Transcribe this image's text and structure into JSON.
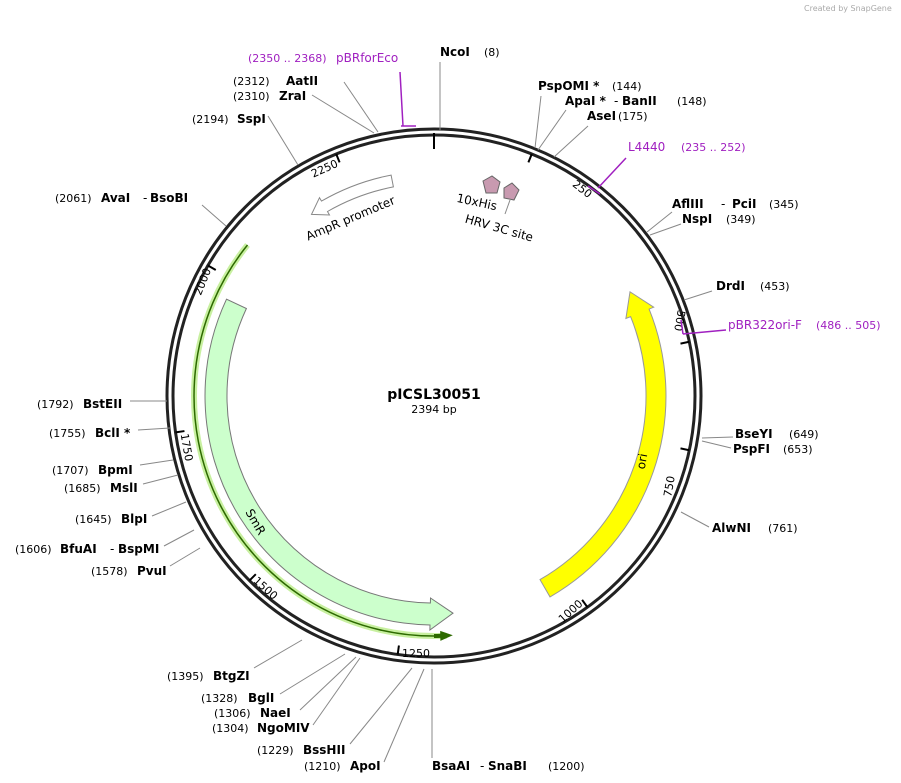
{
  "credit": "Created by SnapGene",
  "map": {
    "name": "pICSL30051",
    "length": "2394 bp"
  },
  "name_separator": "-",
  "sites": [
    {
      "names": [
        "NcoI"
      ],
      "position": "(8)"
    },
    {
      "names": [
        "PspOMI *"
      ],
      "position": "(144)"
    },
    {
      "names": [
        "ApaI *",
        "BanII"
      ],
      "position": "(148)"
    },
    {
      "names": [
        "AseI"
      ],
      "position": "(175)"
    },
    {
      "names": [
        "AflIII",
        "PciI"
      ],
      "position": "(345)"
    },
    {
      "names": [
        "NspI"
      ],
      "position": "(349)"
    },
    {
      "names": [
        "DrdI"
      ],
      "position": "(453)"
    },
    {
      "names": [
        "BseYI"
      ],
      "position": "(649)"
    },
    {
      "names": [
        "PspFI"
      ],
      "position": "(653)"
    },
    {
      "names": [
        "AlwNI"
      ],
      "position": "(761)"
    },
    {
      "names": [
        "BsaAI",
        "SnaBI"
      ],
      "position": "(1200)"
    },
    {
      "names": [
        "ApoI"
      ],
      "position": "(1210)"
    },
    {
      "names": [
        "BssHII"
      ],
      "position": "(1229)"
    },
    {
      "names": [
        "NgoMIV"
      ],
      "position": "(1304)"
    },
    {
      "names": [
        "NaeI"
      ],
      "position": "(1306)"
    },
    {
      "names": [
        "BglI"
      ],
      "position": "(1328)"
    },
    {
      "names": [
        "BtgZI"
      ],
      "position": "(1395)"
    },
    {
      "names": [
        "PvuI"
      ],
      "position": "(1578)"
    },
    {
      "names": [
        "BfuAI",
        "BspMI"
      ],
      "position": "(1606)"
    },
    {
      "names": [
        "BlpI"
      ],
      "position": "(1645)"
    },
    {
      "names": [
        "MslI"
      ],
      "position": "(1685)"
    },
    {
      "names": [
        "BpmI"
      ],
      "position": "(1707)"
    },
    {
      "names": [
        "BclI *"
      ],
      "position": "(1755)"
    },
    {
      "names": [
        "BstEII"
      ],
      "position": "(1792)"
    },
    {
      "names": [
        "AvaI",
        "BsoBI"
      ],
      "position": "(2061)"
    },
    {
      "names": [
        "SspI"
      ],
      "position": "(2194)"
    },
    {
      "names": [
        "ZraI"
      ],
      "position": "(2310)"
    },
    {
      "names": [
        "AatII"
      ],
      "position": "(2312)"
    }
  ],
  "features": [
    {
      "label": "AmpR promoter"
    },
    {
      "label": "10xHis"
    },
    {
      "label": "HRV 3C site"
    },
    {
      "label": "SmR"
    },
    {
      "label": "ori"
    }
  ],
  "primers": [
    {
      "name": "pBRforEco",
      "range": "(2350 .. 2368)"
    },
    {
      "name": "L4440",
      "range": "(235 .. 252)"
    },
    {
      "name": "pBR322ori-F",
      "range": "(486 .. 505)"
    }
  ],
  "ring_ticks": [
    250,
    500,
    750,
    1000,
    1250,
    1500,
    1750,
    2000,
    2250
  ]
}
